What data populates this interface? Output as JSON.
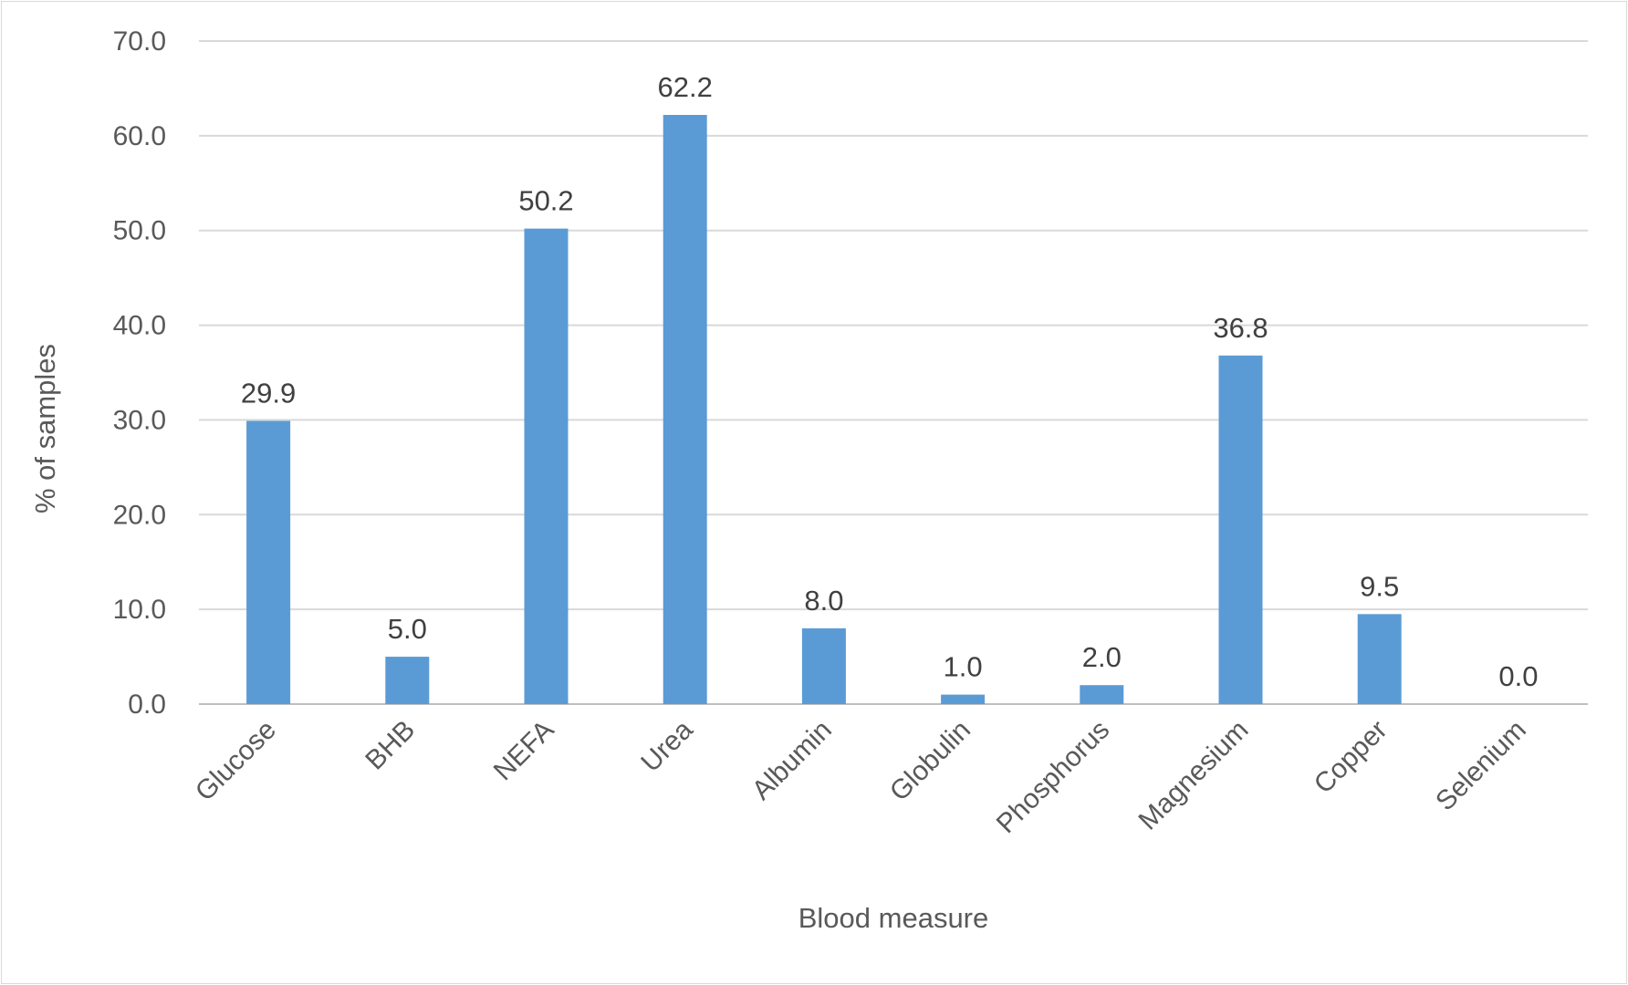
{
  "chart_data": {
    "type": "bar",
    "categories": [
      "Glucose",
      "BHB",
      "NEFA",
      "Urea",
      "Albumin",
      "Globulin",
      "Phosphorus",
      "Magnesium",
      "Copper",
      "Selenium"
    ],
    "values": [
      29.9,
      5.0,
      50.2,
      62.2,
      8.0,
      1.0,
      2.0,
      36.8,
      9.5,
      0.0
    ],
    "data_labels": [
      "29.9",
      "5.0",
      "50.2",
      "62.2",
      "8.0",
      "1.0",
      "2.0",
      "36.8",
      "9.5",
      "0.0"
    ],
    "xlabel": "Blood measure",
    "ylabel": "% of samples",
    "ylim": [
      0,
      70
    ],
    "yticks": [
      "0.0",
      "10.0",
      "20.0",
      "30.0",
      "40.0",
      "50.0",
      "60.0",
      "70.0"
    ],
    "grid": true,
    "bar_color": "#5b9bd5"
  }
}
